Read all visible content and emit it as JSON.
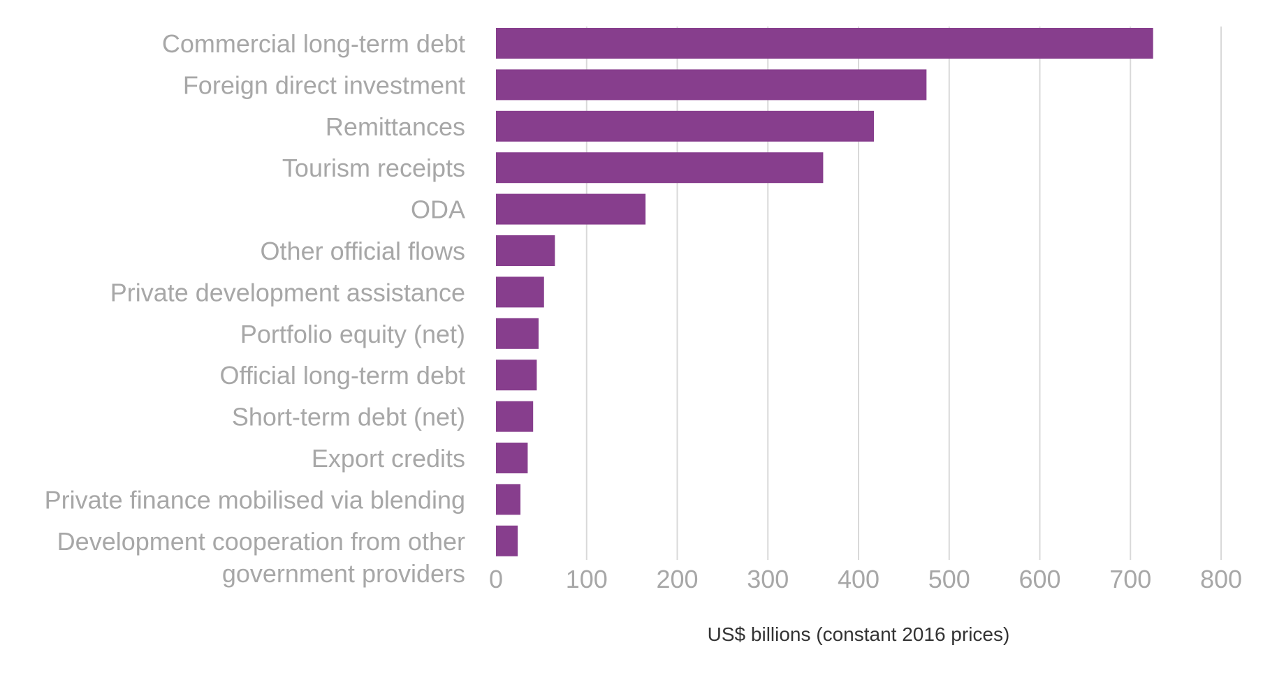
{
  "chart_data": {
    "type": "bar",
    "orientation": "horizontal",
    "categories": [
      [
        "Commercial long-term debt"
      ],
      [
        "Foreign direct investment"
      ],
      [
        "Remittances"
      ],
      [
        "Tourism receipts"
      ],
      [
        "ODA"
      ],
      [
        "Other official flows"
      ],
      [
        "Private development assistance"
      ],
      [
        "Portfolio equity (net)"
      ],
      [
        "Official long-term debt"
      ],
      [
        "Short-term debt (net)"
      ],
      [
        "Export credits"
      ],
      [
        "Private finance mobilised via blending"
      ],
      [
        "Development cooperation from other",
        "government providers"
      ]
    ],
    "values": [
      725,
      475,
      417,
      361,
      165,
      65,
      53,
      47,
      45,
      41,
      35,
      27,
      24
    ],
    "xlabel": "US$ billions (constant 2016 prices)",
    "ylabel": "",
    "title": "",
    "xlim": [
      0,
      800
    ],
    "xticks": [
      0,
      100,
      200,
      300,
      400,
      500,
      600,
      700,
      800
    ],
    "grid": "vertical",
    "legend": "none",
    "colors": {
      "bar": "#873E8D",
      "gridline": "#d9d9d9",
      "label": "#a7a7a7",
      "axis_title": "#333333"
    }
  }
}
